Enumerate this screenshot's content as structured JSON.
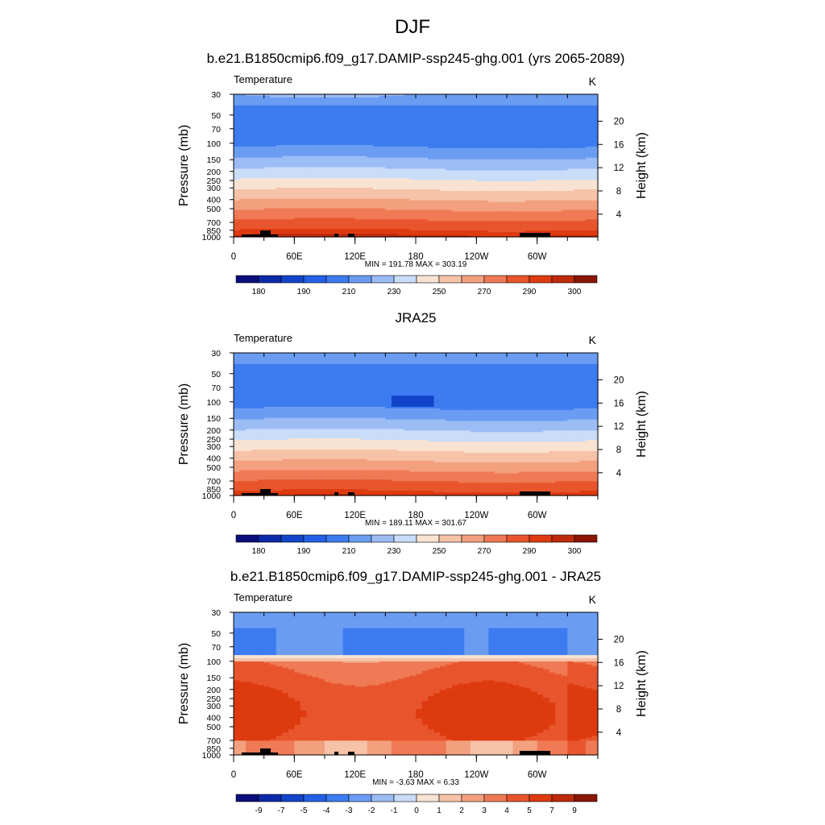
{
  "title": "DJF",
  "colors": {
    "abs": [
      "#0a0e7a",
      "#0b2aa8",
      "#1244c9",
      "#2460e6",
      "#3d7bf0",
      "#6a9cf2",
      "#9cbcf5",
      "#c9dcf8",
      "#f8e3d2",
      "#f6c2a8",
      "#f3a07f",
      "#ef7a55",
      "#e8552c",
      "#de3a10",
      "#bd2a0c",
      "#8a1606"
    ],
    "diff": [
      "#0a0e7a",
      "#0b2aa8",
      "#1244c9",
      "#2460e6",
      "#3d7bf0",
      "#6a9cf2",
      "#9cbcf5",
      "#c9dcf8",
      "#f8e3d2",
      "#f6c2a8",
      "#f3a07f",
      "#ef7a55",
      "#e8552c",
      "#de3a10",
      "#bd2a0c",
      "#8a1606"
    ],
    "terrain": "#000000"
  },
  "chart_data": [
    {
      "type": "heatmap",
      "title": "b.e21.B1850cmip6.f09_g17.DAMIP-ssp245-ghg.001 (yrs 2065-2089)",
      "left_label": "Temperature",
      "right_label": "K",
      "ylabel": "Pressure (mb)",
      "y2label": "Height (km)",
      "x_ticks": [
        "0",
        "60E",
        "120E",
        "180",
        "120W",
        "60W"
      ],
      "y_ticks": [
        "30",
        "50",
        "70",
        "100",
        "150",
        "200",
        "250",
        "300",
        "400",
        "500",
        "700",
        "850",
        "1000"
      ],
      "y2_ticks": [
        "4",
        "8",
        "12",
        "16",
        "20"
      ],
      "stats": "MIN = 191.78  MAX = 303.19",
      "colorbar_labels": [
        "180",
        "190",
        "210",
        "230",
        "250",
        "270",
        "290",
        "300"
      ],
      "field": "model"
    },
    {
      "type": "heatmap",
      "title": "JRA25",
      "left_label": "Temperature",
      "right_label": "K",
      "ylabel": "Pressure (mb)",
      "y2label": "Height (km)",
      "x_ticks": [
        "0",
        "60E",
        "120E",
        "180",
        "120W",
        "60W"
      ],
      "y_ticks": [
        "30",
        "50",
        "70",
        "100",
        "150",
        "200",
        "250",
        "300",
        "400",
        "500",
        "700",
        "850",
        "1000"
      ],
      "y2_ticks": [
        "4",
        "8",
        "12",
        "16",
        "20"
      ],
      "stats": "MIN = 189.11  MAX = 301.67",
      "colorbar_labels": [
        "180",
        "190",
        "210",
        "230",
        "250",
        "270",
        "290",
        "300"
      ],
      "field": "obs"
    },
    {
      "type": "heatmap",
      "title": "b.e21.B1850cmip6.f09_g17.DAMIP-ssp245-ghg.001 - JRA25",
      "left_label": "Temperature",
      "right_label": "K",
      "ylabel": "Pressure (mb)",
      "y2label": "Height (km)",
      "x_ticks": [
        "0",
        "60E",
        "120E",
        "180",
        "120W",
        "60W"
      ],
      "y_ticks": [
        "30",
        "50",
        "70",
        "100",
        "150",
        "200",
        "250",
        "300",
        "400",
        "500",
        "700",
        "850",
        "1000"
      ],
      "y2_ticks": [
        "4",
        "8",
        "12",
        "16",
        "20"
      ],
      "stats": "MIN =  -3.63  MAX =   6.33",
      "colorbar_labels": [
        "-9",
        "-7",
        "-5",
        "-4",
        "-3",
        "-2",
        "-1",
        "0",
        "1",
        "2",
        "3",
        "4",
        "5",
        "7",
        "9"
      ],
      "field": "diff"
    }
  ]
}
